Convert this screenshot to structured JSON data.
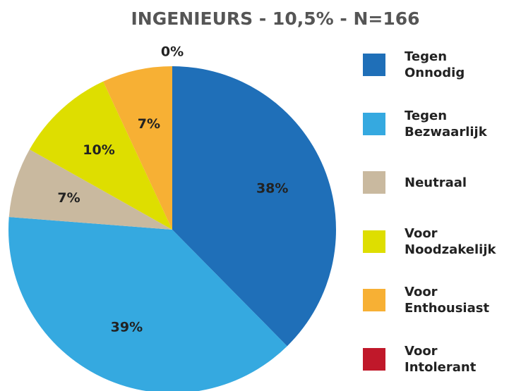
{
  "chart_data": {
    "type": "pie",
    "title": "INGENIEURS - 10,5% - N=166",
    "categories": [
      "Tegen Onnodig",
      "Tegen Bezwaarlijk",
      "Neutraal",
      "Voor Noodzakelijk",
      "Voor Enthousiast",
      "Voor Intolerant"
    ],
    "values": [
      38,
      39,
      7,
      10,
      7,
      0
    ],
    "value_labels": [
      "38%",
      "39%",
      "7%",
      "10%",
      "7%",
      "0%"
    ],
    "colors": [
      "#1f6fb8",
      "#35a9e0",
      "#c9b99f",
      "#dede00",
      "#f7b034",
      "#c0182a"
    ],
    "legend": "right"
  }
}
